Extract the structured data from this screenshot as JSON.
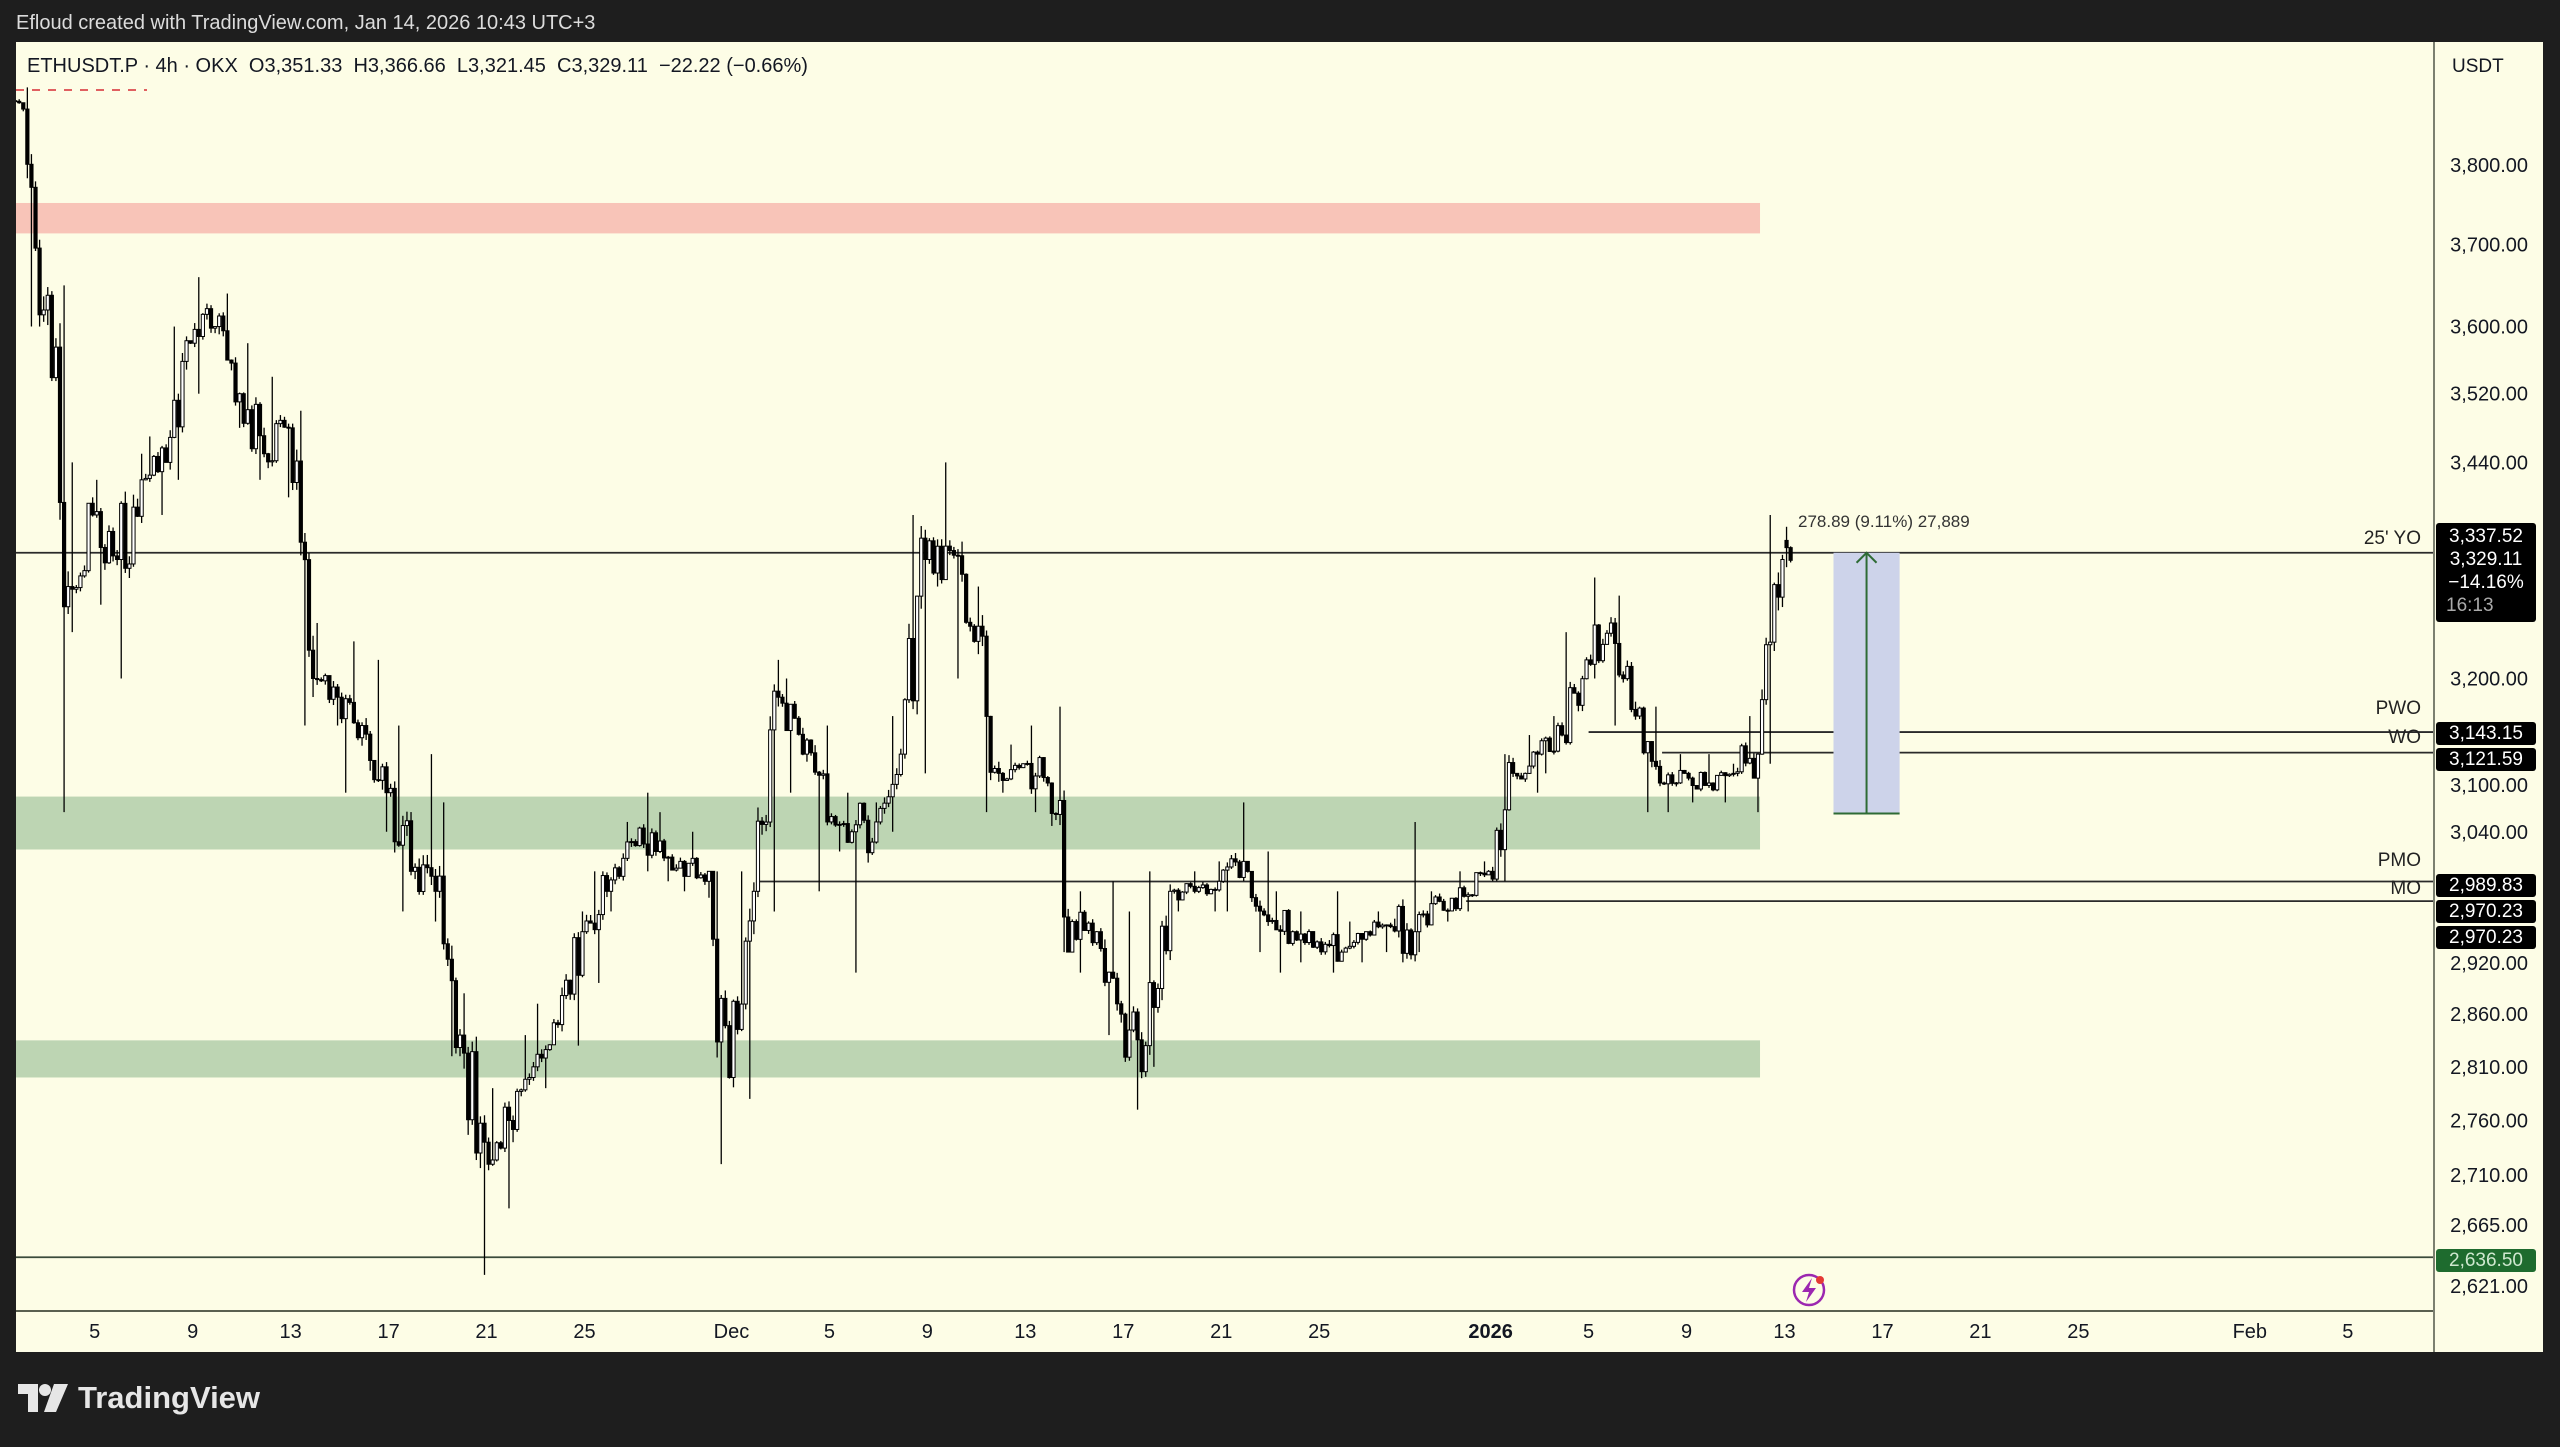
{
  "header": {
    "attribution": "Efloud created with TradingView.com, Jan 14, 2026 10:43 UTC+3"
  },
  "legend": {
    "symbol": "ETHUSDT.P · 4h · OKX",
    "open": "O3,351.33",
    "high": "H3,366.66",
    "low": "L3,321.45",
    "close": "C3,329.11",
    "change": "−22.22 (−0.66%)"
  },
  "price_axis": {
    "currency": "USDT",
    "scale": "log",
    "ticks": [
      {
        "value": 3800,
        "label": "3,800.00"
      },
      {
        "value": 3700,
        "label": "3,700.00"
      },
      {
        "value": 3600,
        "label": "3,600.00"
      },
      {
        "value": 3520,
        "label": "3,520.00"
      },
      {
        "value": 3440,
        "label": "3,440.00"
      },
      {
        "value": 3200,
        "label": "3,200.00"
      },
      {
        "value": 3100,
        "label": "3,100.00"
      },
      {
        "value": 3040,
        "label": "3,040.00"
      },
      {
        "value": 2920,
        "label": "2,920.00"
      },
      {
        "value": 2860,
        "label": "2,860.00"
      },
      {
        "value": 2810,
        "label": "2,810.00"
      },
      {
        "value": 2760,
        "label": "2,760.00"
      },
      {
        "value": 2710,
        "label": "2,710.00"
      },
      {
        "value": 2665,
        "label": "2,665.00"
      },
      {
        "value": 2621,
        "label": "2,621.00"
      }
    ]
  },
  "time_axis": {
    "ticks": [
      {
        "date": "2025-11-05",
        "label": "5"
      },
      {
        "date": "2025-11-09",
        "label": "9"
      },
      {
        "date": "2025-11-13",
        "label": "13"
      },
      {
        "date": "2025-11-17",
        "label": "17"
      },
      {
        "date": "2025-11-21",
        "label": "21"
      },
      {
        "date": "2025-11-25",
        "label": "25"
      },
      {
        "date": "2025-12-01",
        "label": "Dec"
      },
      {
        "date": "2025-12-05",
        "label": "5"
      },
      {
        "date": "2025-12-09",
        "label": "9"
      },
      {
        "date": "2025-12-13",
        "label": "13"
      },
      {
        "date": "2025-12-17",
        "label": "17"
      },
      {
        "date": "2025-12-21",
        "label": "21"
      },
      {
        "date": "2025-12-25",
        "label": "25"
      },
      {
        "date": "2026-01-01",
        "label": "2026",
        "bold": true
      },
      {
        "date": "2026-01-05",
        "label": "5"
      },
      {
        "date": "2026-01-09",
        "label": "9"
      },
      {
        "date": "2026-01-13",
        "label": "13"
      },
      {
        "date": "2026-01-17",
        "label": "17"
      },
      {
        "date": "2026-01-21",
        "label": "21"
      },
      {
        "date": "2026-01-25",
        "label": "25"
      },
      {
        "date": "2026-02-01",
        "label": "Feb"
      },
      {
        "date": "2026-02-05",
        "label": "5"
      }
    ]
  },
  "levels": [
    {
      "name": "25' YO",
      "price": 3337.52,
      "from": "2025-11-01"
    },
    {
      "name": "PWO",
      "price": 3143.15,
      "from": "2026-01-05"
    },
    {
      "name": "WO",
      "price": 3121.59,
      "from": "2026-01-08"
    },
    {
      "name": "PMO",
      "price": 2989.83,
      "from": "2025-12-02"
    },
    {
      "name": "MO",
      "price": 2970.23,
      "from": "2025-12-31"
    },
    {
      "name": "",
      "price": 2636.5,
      "from": "2025-11-01"
    }
  ],
  "price_tags": {
    "main": {
      "level": "3,337.52",
      "last": "3,329.11",
      "pct": "−14.16%",
      "countdown": "16:13"
    },
    "pwo": "3,143.15",
    "wo": "3,121.59",
    "pmo": "2,989.83",
    "mo": "2,970.23",
    "mo2": "2,970.23",
    "low": "2,636.50"
  },
  "zones": [
    {
      "type": "supply",
      "top": 3752,
      "bottom": 3714,
      "color": "#f8c4b8",
      "from": "2025-11-01",
      "to": "2026-01-12"
    },
    {
      "type": "demand",
      "top": 3076,
      "bottom": 3022,
      "color": "#bdd5b3",
      "from": "2025-11-01",
      "to": "2026-01-12"
    },
    {
      "type": "demand",
      "top": 2835,
      "bottom": 2800,
      "color": "#bdd5b3",
      "from": "2025-11-01",
      "to": "2026-01-12"
    }
  ],
  "measure": {
    "text": "278.89 (9.11%) 27,889",
    "from_price": 3058.63,
    "to_price": 3337.52,
    "start": "2026-01-15",
    "end": "2026-01-17.7",
    "color": "#cdd3ea",
    "arrow_color": "#2e6b35"
  },
  "colors": {
    "background": "#fdfde6",
    "up": "#ffffff",
    "down": "#000000",
    "frame": "#1e1e1e",
    "low_tag": "#1e6b2e"
  },
  "brand": {
    "logo_text": "TradingView"
  },
  "icons": {
    "alert": "lightning-icon"
  },
  "chart_data": {
    "type": "candlestick",
    "symbol": "ETHUSDT.P",
    "interval": "4h",
    "yscale": "log",
    "ylim": [
      2600,
      3950
    ],
    "columns": [
      "date",
      "open",
      "high",
      "low",
      "close"
    ],
    "daily": [
      [
        "2025-11-02",
        3900,
        3930,
        3860,
        3880
      ],
      [
        "2025-11-03",
        3880,
        3900,
        3600,
        3620
      ],
      [
        "2025-11-04",
        3620,
        3650,
        3060,
        3300
      ],
      [
        "2025-11-05",
        3300,
        3440,
        3250,
        3380
      ],
      [
        "2025-11-06",
        3380,
        3420,
        3280,
        3330
      ],
      [
        "2025-11-07",
        3330,
        3450,
        3200,
        3420
      ],
      [
        "2025-11-08",
        3420,
        3470,
        3380,
        3440
      ],
      [
        "2025-11-09",
        3440,
        3600,
        3420,
        3580
      ],
      [
        "2025-11-10",
        3580,
        3660,
        3520,
        3600
      ],
      [
        "2025-11-11",
        3600,
        3640,
        3480,
        3520
      ],
      [
        "2025-11-12",
        3520,
        3580,
        3420,
        3450
      ],
      [
        "2025-11-13",
        3450,
        3540,
        3400,
        3480
      ],
      [
        "2025-11-14",
        3480,
        3500,
        3150,
        3200
      ],
      [
        "2025-11-15",
        3200,
        3260,
        3150,
        3180
      ],
      [
        "2025-11-16",
        3180,
        3240,
        3080,
        3150
      ],
      [
        "2025-11-17",
        3150,
        3220,
        3040,
        3080
      ],
      [
        "2025-11-18",
        3080,
        3150,
        2960,
        3000
      ],
      [
        "2025-11-19",
        3000,
        3120,
        2950,
        2980
      ],
      [
        "2025-11-20",
        2980,
        3070,
        2820,
        2840
      ],
      [
        "2025-11-21",
        2840,
        2880,
        2621,
        2740
      ],
      [
        "2025-11-22",
        2740,
        2790,
        2680,
        2760
      ],
      [
        "2025-11-23",
        2760,
        2840,
        2740,
        2810
      ],
      [
        "2025-11-24",
        2810,
        2870,
        2790,
        2850
      ],
      [
        "2025-11-25",
        2850,
        2960,
        2830,
        2940
      ],
      [
        "2025-11-26",
        2940,
        3000,
        2890,
        2980
      ],
      [
        "2025-11-27",
        2980,
        3050,
        2960,
        3030
      ],
      [
        "2025-11-28",
        3030,
        3080,
        3000,
        3020
      ],
      [
        "2025-11-29",
        3020,
        3060,
        2990,
        3010
      ],
      [
        "2025-11-30",
        3010,
        3040,
        2980,
        2990
      ],
      [
        "2025-12-01",
        2990,
        3000,
        2720,
        2800
      ],
      [
        "2025-12-02",
        2800,
        3000,
        2780,
        2980
      ],
      [
        "2025-12-03",
        2980,
        3220,
        2960,
        3180
      ],
      [
        "2025-12-04",
        3180,
        3200,
        3080,
        3120
      ],
      [
        "2025-12-05",
        3120,
        3150,
        2980,
        3050
      ],
      [
        "2025-12-06",
        3050,
        3080,
        3020,
        3040
      ],
      [
        "2025-12-07",
        3040,
        3070,
        2900,
        3050
      ],
      [
        "2025-12-08",
        3050,
        3160,
        3040,
        3120
      ],
      [
        "2025-12-09",
        3120,
        3380,
        3100,
        3330
      ],
      [
        "2025-12-10",
        3330,
        3440,
        3300,
        3340
      ],
      [
        "2025-12-11",
        3340,
        3350,
        3200,
        3240
      ],
      [
        "2025-12-12",
        3240,
        3300,
        3060,
        3100
      ],
      [
        "2025-12-13",
        3100,
        3130,
        3080,
        3110
      ],
      [
        "2025-12-14",
        3110,
        3150,
        3060,
        3090
      ],
      [
        "2025-12-15",
        3090,
        3170,
        2920,
        2950
      ],
      [
        "2025-12-16",
        2950,
        2980,
        2900,
        2940
      ],
      [
        "2025-12-17",
        2940,
        2990,
        2840,
        2860
      ],
      [
        "2025-12-18",
        2860,
        2960,
        2770,
        2830
      ],
      [
        "2025-12-19",
        2830,
        3000,
        2810,
        2980
      ],
      [
        "2025-12-20",
        2980,
        3000,
        2960,
        2980
      ],
      [
        "2025-12-21",
        2980,
        3010,
        2960,
        2990
      ],
      [
        "2025-12-22",
        2990,
        3070,
        2960,
        3010
      ],
      [
        "2025-12-23",
        3010,
        3020,
        2920,
        2950
      ],
      [
        "2025-12-24",
        2950,
        2980,
        2900,
        2940
      ],
      [
        "2025-12-25",
        2940,
        2960,
        2910,
        2930
      ],
      [
        "2025-12-26",
        2930,
        2980,
        2900,
        2920
      ],
      [
        "2025-12-27",
        2920,
        2950,
        2910,
        2940
      ],
      [
        "2025-12-28",
        2940,
        2960,
        2920,
        2945
      ],
      [
        "2025-12-29",
        2945,
        3050,
        2910,
        2940
      ],
      [
        "2025-12-30",
        2940,
        2980,
        2920,
        2970
      ],
      [
        "2025-12-31",
        2970,
        3000,
        2950,
        2975
      ],
      [
        "2026-01-01",
        2975,
        3010,
        2960,
        3000
      ],
      [
        "2026-01-02",
        3000,
        3120,
        2990,
        3100
      ],
      [
        "2026-01-03",
        3100,
        3140,
        3080,
        3120
      ],
      [
        "2026-01-04",
        3120,
        3160,
        3100,
        3140
      ],
      [
        "2026-01-05",
        3140,
        3250,
        3130,
        3220
      ],
      [
        "2026-01-06",
        3220,
        3310,
        3200,
        3260
      ],
      [
        "2026-01-07",
        3260,
        3290,
        3150,
        3160
      ],
      [
        "2026-01-08",
        3160,
        3170,
        3060,
        3090
      ],
      [
        "2026-01-09",
        3090,
        3120,
        3060,
        3100
      ],
      [
        "2026-01-10",
        3100,
        3120,
        3070,
        3090
      ],
      [
        "2026-01-11",
        3090,
        3110,
        3070,
        3100
      ],
      [
        "2026-01-12",
        3100,
        3160,
        3060,
        3120
      ],
      [
        "2026-01-13",
        3120,
        3380,
        3110,
        3330
      ],
      [
        "2026-01-14",
        3351.33,
        3366.66,
        3321.45,
        3329.11
      ]
    ]
  }
}
